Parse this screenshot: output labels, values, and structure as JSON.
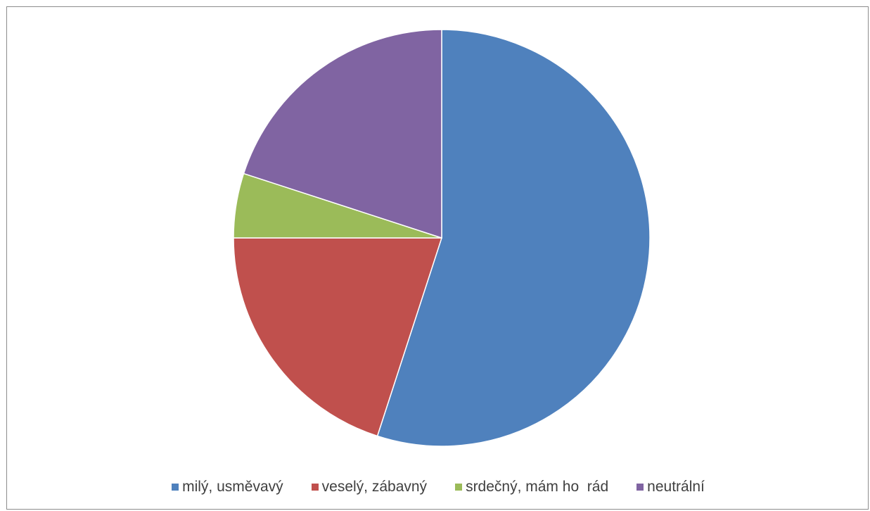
{
  "chart_data": {
    "type": "pie",
    "categories": [
      "milý, usměvavý",
      "veselý, zábavný",
      "srdečný, mám ho  rád",
      "neutrální"
    ],
    "values": [
      55,
      20,
      5,
      20
    ],
    "colors": [
      "#4f81bd",
      "#c0504d",
      "#9bbb59",
      "#8064a2"
    ],
    "start_angle_deg": 0,
    "direction": "clockwise",
    "legend_position": "bottom",
    "title": ""
  }
}
